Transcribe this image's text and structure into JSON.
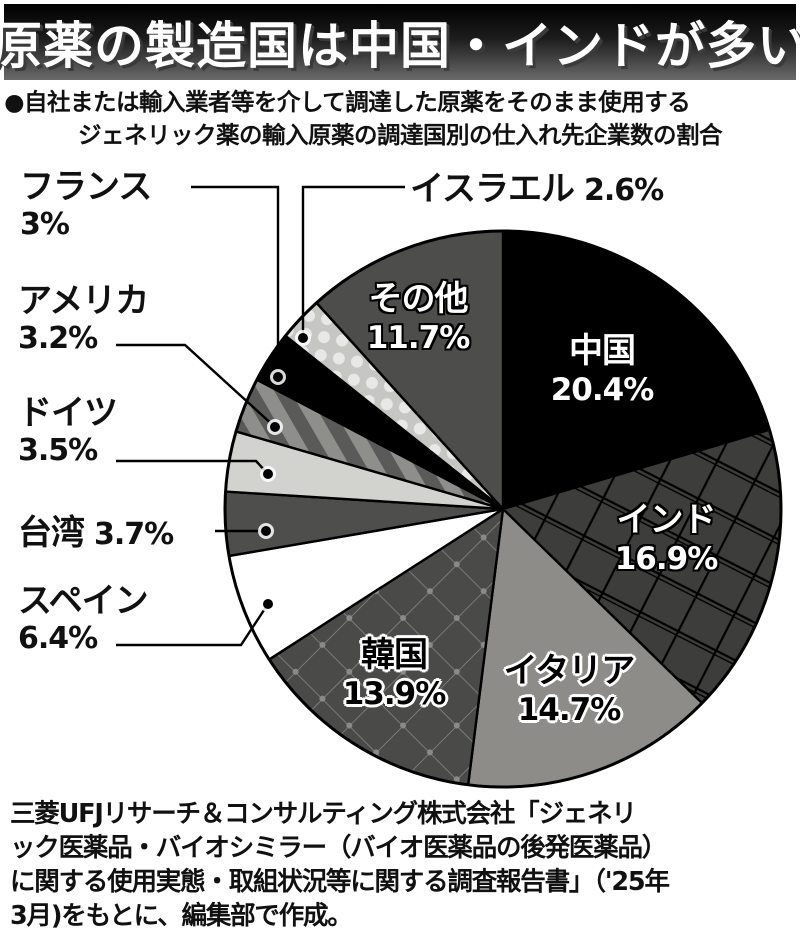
{
  "title": "原薬の製造国は中国・インドが多い",
  "subtitle": {
    "line1": "●自社または輸入業者等を介して調達した原薬をそのまま使用する",
    "line2": "ジェネリック薬の輸入原薬の調達国別の仕入れ先企業数の割合"
  },
  "source": {
    "lines": [
      "三菱UFJリサーチ＆コンサルティング株式会社「ジェネリ",
      "ック医薬品・バイオシミラー（バイオ医薬品の後発医薬品）",
      "に関する使用実態・取組状況等に関する調査報告書」（'25年",
      "3月)をもとに、編集部で作成。"
    ]
  },
  "colors": {
    "china": "#000000",
    "india": "#3d3d3b",
    "italy": "#8e8c88",
    "korea": "#4a4a48",
    "spain": "#ffffff",
    "taiwan": "#4e4e4c",
    "germany": "#d2d2ce",
    "usa": "#5a5a58",
    "france": "#000000",
    "israel": "#c8c8c4",
    "other": "#4d4d4b",
    "outline": "#000000"
  },
  "labels": {
    "china": {
      "name": "中国",
      "pct": "20.4%"
    },
    "india": {
      "name": "インド",
      "pct": "16.9%"
    },
    "italy": {
      "name": "イタリア",
      "pct": "14.7%"
    },
    "korea": {
      "name": "韓国",
      "pct": "13.9%"
    },
    "spain": {
      "name": "スペイン",
      "pct": "6.4%"
    },
    "taiwan": {
      "name": "台湾",
      "pct": "3.7%"
    },
    "germany": {
      "name": "ドイツ",
      "pct": "3.5%"
    },
    "usa": {
      "name": "アメリカ",
      "pct": "3.2%"
    },
    "france": {
      "name": "フランス",
      "pct": "3%"
    },
    "israel": {
      "name": "イスラエル",
      "pct": "2.6%"
    },
    "other": {
      "name": "その他",
      "pct": "11.7%"
    }
  },
  "chart_data": {
    "type": "pie",
    "title": "原薬の製造国は中国・インドが多い",
    "subtitle": "自社または輸入業者等を介して調達した原薬をそのまま使用するジェネリック薬の輸入原薬の調達国別の仕入れ先企業数の割合",
    "unit": "%",
    "start_angle": "12 o'clock",
    "direction": "clockwise",
    "categories": [
      "中国",
      "インド",
      "イタリア",
      "韓国",
      "スペイン",
      "台湾",
      "ドイツ",
      "アメリカ",
      "フランス",
      "イスラエル",
      "その他"
    ],
    "values": [
      20.4,
      16.9,
      14.7,
      13.9,
      6.4,
      3.7,
      3.5,
      3.2,
      3.0,
      2.6,
      11.7
    ],
    "slice_keys": [
      "china",
      "india",
      "italy",
      "korea",
      "spain",
      "taiwan",
      "germany",
      "usa",
      "france",
      "israel",
      "other"
    ],
    "slice_fills": [
      "solid-black",
      "dark-gray-crosshatch",
      "mid-gray",
      "dark-gray-diamond-lattice",
      "white",
      "dark-gray",
      "light-gray",
      "gray-diagonal-stripes",
      "solid-black",
      "light-gray-dots",
      "dark-gray"
    ],
    "legend": "none (leader-line labels)",
    "source": "三菱UFJリサーチ＆コンサルティング株式会社「ジェネリック医薬品・バイオシミラー（バイオ医薬品の後発医薬品）に関する使用実態・取組状況等に関する調査報告書」（'25年3月)をもとに、編集部で作成。"
  }
}
